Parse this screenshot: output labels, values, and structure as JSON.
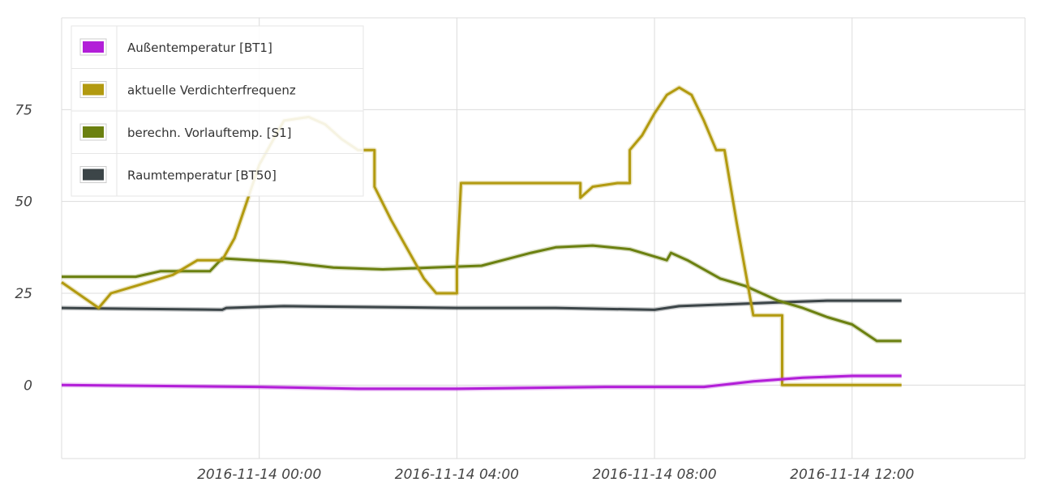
{
  "chart_data": {
    "type": "line",
    "title": "",
    "xlabel": "",
    "ylabel": "",
    "ylim": [
      -20,
      100
    ],
    "yticks": [
      0,
      25,
      50,
      75
    ],
    "xlim": [
      "2016-11-13 20:00",
      "2016-11-14 15:30"
    ],
    "xticks": [
      "2016-11-14 00:00",
      "2016-11-14 04:00",
      "2016-11-14 08:00",
      "2016-11-14 12:00"
    ],
    "grid": true,
    "legend_position": "top-left",
    "series": [
      {
        "name": "Außentemperatur [BT1]",
        "color": "#b21ed8",
        "points": [
          [
            "2016-11-13 20:00",
            0
          ],
          [
            "2016-11-14 00:00",
            -0.5
          ],
          [
            "2016-11-14 02:00",
            -1
          ],
          [
            "2016-11-14 04:00",
            -1
          ],
          [
            "2016-11-14 07:00",
            -0.5
          ],
          [
            "2016-11-14 09:00",
            -0.5
          ],
          [
            "2016-11-14 10:00",
            1
          ],
          [
            "2016-11-14 11:00",
            2
          ],
          [
            "2016-11-14 12:00",
            2.5
          ],
          [
            "2016-11-14 13:00",
            2.5
          ]
        ]
      },
      {
        "name": "aktuelle Verdichterfrequenz",
        "color": "#b29a10",
        "points": [
          [
            "2016-11-13 20:00",
            28
          ],
          [
            "2016-11-13 20:45",
            21
          ],
          [
            "2016-11-13 21:00",
            25
          ],
          [
            "2016-11-13 21:30",
            27
          ],
          [
            "2016-11-13 22:15",
            30
          ],
          [
            "2016-11-13 22:45",
            34
          ],
          [
            "2016-11-13 23:15",
            34
          ],
          [
            "2016-11-13 23:30",
            40
          ],
          [
            "2016-11-13 23:45",
            50
          ],
          [
            "2016-11-14 00:00",
            60
          ],
          [
            "2016-11-14 00:30",
            72
          ],
          [
            "2016-11-14 01:00",
            73
          ],
          [
            "2016-11-14 01:20",
            71
          ],
          [
            "2016-11-14 01:40",
            67
          ],
          [
            "2016-11-14 02:00",
            64
          ],
          [
            "2016-11-14 02:20",
            64
          ],
          [
            "2016-11-14 02:20",
            54
          ],
          [
            "2016-11-14 02:40",
            45
          ],
          [
            "2016-11-14 03:00",
            37
          ],
          [
            "2016-11-14 03:20",
            29
          ],
          [
            "2016-11-14 03:35",
            25
          ],
          [
            "2016-11-14 04:00",
            25
          ],
          [
            "2016-11-14 04:00",
            32
          ],
          [
            "2016-11-14 04:05",
            55
          ],
          [
            "2016-11-14 06:30",
            55
          ],
          [
            "2016-11-14 06:30",
            51
          ],
          [
            "2016-11-14 06:45",
            54
          ],
          [
            "2016-11-14 07:15",
            55
          ],
          [
            "2016-11-14 07:30",
            55
          ],
          [
            "2016-11-14 07:30",
            64
          ],
          [
            "2016-11-14 07:45",
            68
          ],
          [
            "2016-11-14 08:00",
            74
          ],
          [
            "2016-11-14 08:15",
            79
          ],
          [
            "2016-11-14 08:30",
            81
          ],
          [
            "2016-11-14 08:45",
            79
          ],
          [
            "2016-11-14 09:00",
            72
          ],
          [
            "2016-11-14 09:15",
            64
          ],
          [
            "2016-11-14 09:25",
            64
          ],
          [
            "2016-11-14 09:40",
            44
          ],
          [
            "2016-11-14 10:00",
            19
          ],
          [
            "2016-11-14 10:35",
            19
          ],
          [
            "2016-11-14 10:35",
            0
          ],
          [
            "2016-11-14 13:00",
            0
          ]
        ]
      },
      {
        "name": "berechn. Vorlauftemp. [S1]",
        "color": "#6b8010",
        "points": [
          [
            "2016-11-13 20:00",
            29.5
          ],
          [
            "2016-11-13 21:30",
            29.5
          ],
          [
            "2016-11-13 22:00",
            31
          ],
          [
            "2016-11-13 23:00",
            31
          ],
          [
            "2016-11-13 23:15",
            34.5
          ],
          [
            "2016-11-14 00:30",
            33.5
          ],
          [
            "2016-11-14 01:30",
            32
          ],
          [
            "2016-11-14 02:30",
            31.5
          ],
          [
            "2016-11-14 03:30",
            32
          ],
          [
            "2016-11-14 04:30",
            32.5
          ],
          [
            "2016-11-14 05:30",
            36
          ],
          [
            "2016-11-14 06:00",
            37.5
          ],
          [
            "2016-11-14 06:45",
            38
          ],
          [
            "2016-11-14 07:30",
            37
          ],
          [
            "2016-11-14 08:15",
            34
          ],
          [
            "2016-11-14 08:20",
            36
          ],
          [
            "2016-11-14 08:40",
            34
          ],
          [
            "2016-11-14 09:20",
            29
          ],
          [
            "2016-11-14 09:50",
            27
          ],
          [
            "2016-11-14 10:30",
            23
          ],
          [
            "2016-11-14 11:00",
            21
          ],
          [
            "2016-11-14 11:30",
            18.5
          ],
          [
            "2016-11-14 12:00",
            16.5
          ],
          [
            "2016-11-14 12:30",
            12
          ],
          [
            "2016-11-14 13:00",
            12
          ]
        ]
      },
      {
        "name": "Raumtemperatur [BT50]",
        "color": "#3c4548",
        "points": [
          [
            "2016-11-13 20:00",
            21
          ],
          [
            "2016-11-13 23:15",
            20.5
          ],
          [
            "2016-11-13 23:20",
            21
          ],
          [
            "2016-11-14 00:30",
            21.5
          ],
          [
            "2016-11-14 04:00",
            21
          ],
          [
            "2016-11-14 06:00",
            21
          ],
          [
            "2016-11-14 08:00",
            20.5
          ],
          [
            "2016-11-14 08:30",
            21.5
          ],
          [
            "2016-11-14 09:30",
            22
          ],
          [
            "2016-11-14 10:30",
            22.5
          ],
          [
            "2016-11-14 11:30",
            23
          ],
          [
            "2016-11-14 13:00",
            23
          ]
        ]
      }
    ]
  }
}
